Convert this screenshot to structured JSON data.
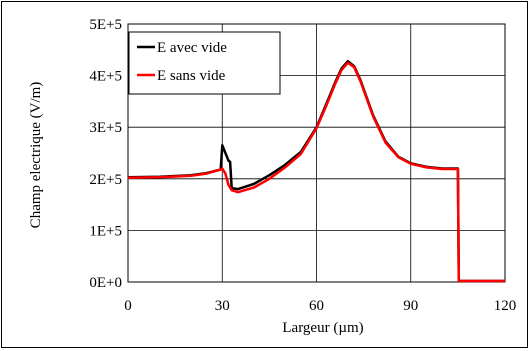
{
  "chart_data": {
    "type": "line",
    "xlabel": "Largeur (µm)",
    "ylabel": "Champ electrique (V/m)",
    "xlim": [
      0,
      120
    ],
    "ylim": [
      0,
      500000
    ],
    "x_ticks": [
      0,
      30,
      60,
      90,
      120
    ],
    "y_ticks": [
      0,
      100000,
      200000,
      300000,
      400000,
      500000
    ],
    "x_tick_labels": [
      "0",
      "30",
      "60",
      "90",
      "120"
    ],
    "y_tick_labels": [
      "0E+0",
      "1E+5",
      "2E+5",
      "3E+5",
      "4E+5",
      "5E+5"
    ],
    "grid": true,
    "legend_position": "top-left",
    "series": [
      {
        "name": "E avec vide",
        "color": "#000000",
        "x": [
          0,
          10,
          20,
          25,
          29.5,
          30,
          31,
          32,
          32.5,
          33,
          35,
          40,
          45,
          50,
          55,
          60,
          63,
          66,
          68,
          70,
          72,
          74,
          78,
          82,
          86,
          90,
          95,
          100,
          104,
          105,
          105.3,
          110,
          120
        ],
        "y": [
          203000,
          204000,
          207000,
          211000,
          218000,
          265000,
          250000,
          235000,
          233000,
          182000,
          180000,
          190000,
          207000,
          227000,
          252000,
          300000,
          343000,
          388000,
          414000,
          428000,
          418000,
          391000,
          323000,
          272000,
          243000,
          230000,
          223000,
          220000,
          220000,
          220000,
          2000,
          2000,
          2000
        ]
      },
      {
        "name": "E sans vide",
        "color": "#ff0000",
        "x": [
          0,
          10,
          20,
          25,
          29.5,
          30,
          31,
          32,
          33,
          35,
          40,
          45,
          50,
          55,
          60,
          63,
          66,
          68,
          70,
          72,
          74,
          78,
          82,
          86,
          90,
          95,
          100,
          104,
          105,
          105.3,
          110,
          120
        ],
        "y": [
          202000,
          203000,
          206000,
          210000,
          218000,
          220000,
          210000,
          188000,
          178000,
          174000,
          183000,
          200000,
          222000,
          248000,
          298000,
          340000,
          385000,
          411000,
          425000,
          416000,
          389000,
          321000,
          270000,
          242000,
          229000,
          222000,
          219000,
          219000,
          219000,
          2000,
          2000,
          2000
        ]
      }
    ]
  }
}
